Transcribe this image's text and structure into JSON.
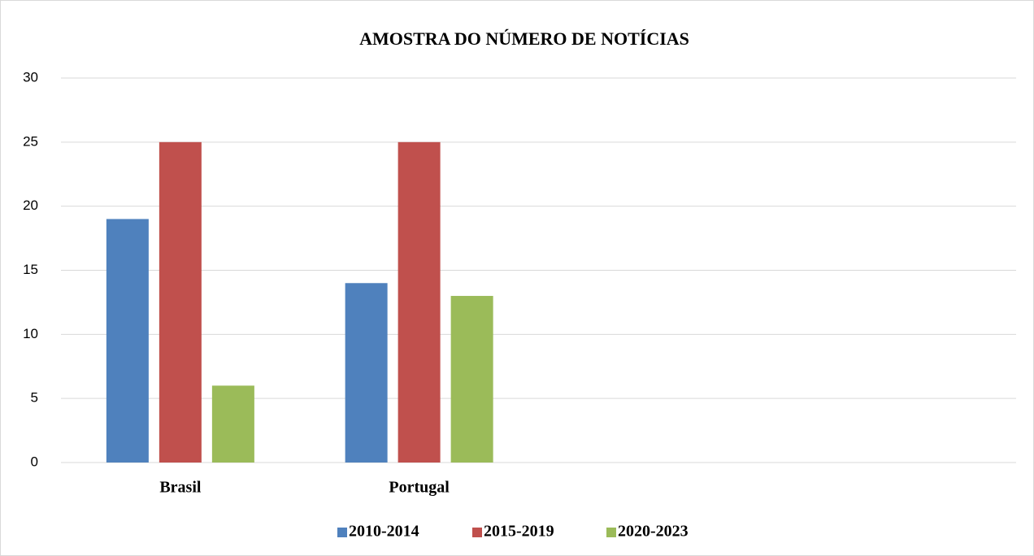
{
  "chart_data": {
    "type": "bar",
    "title": "AMOSTRA DO NÚMERO DE NOTÍCIAS",
    "categories": [
      "Brasil",
      "Portugal",
      null,
      null
    ],
    "series": [
      {
        "name": "2010-2014",
        "color": "#4f81bd",
        "values": [
          19,
          14,
          null,
          null
        ]
      },
      {
        "name": "2015-2019",
        "color": "#c0504d",
        "values": [
          25,
          25,
          null,
          null
        ]
      },
      {
        "name": "2020-2023",
        "color": "#9bbb59",
        "values": [
          6,
          13,
          null,
          null
        ]
      }
    ],
    "ylim": [
      0,
      30
    ],
    "yticks": [
      0,
      5,
      10,
      15,
      20,
      25,
      30
    ],
    "grid": true,
    "legend": "bottom"
  }
}
